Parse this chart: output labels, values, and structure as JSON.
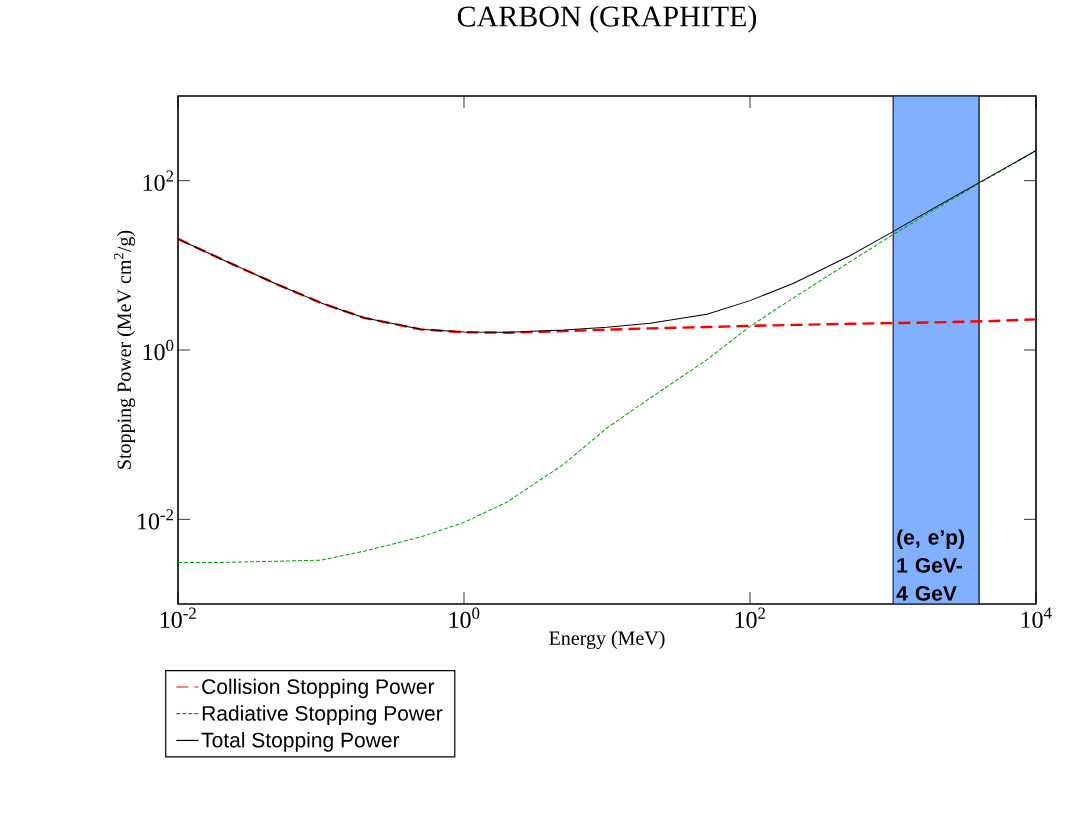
{
  "chart_data": {
    "type": "line",
    "title": "CARBON (GRAPHITE)",
    "xlabel": "Energy (MeV)",
    "ylabel": "Stopping Power (MeV cm$^{2}$/g)",
    "log": "xy",
    "legend": "bottom left",
    "marker": "none",
    "xlim": [
      0.01,
      10000
    ],
    "ylim": [
      0.001,
      1000
    ],
    "xticks": [
      {
        "value": 0.01,
        "label": "10$^{-2}$"
      },
      {
        "value": 1,
        "label": "10$^{0}$"
      },
      {
        "value": 100,
        "label": "10$^{2}$"
      },
      {
        "value": 10000,
        "label": "10$^{4}$"
      }
    ],
    "yticks": [
      {
        "value": 0.01,
        "label": "10$^{-2}$"
      },
      {
        "value": 1,
        "label": "10$^{0}$"
      },
      {
        "value": 100,
        "label": "10$^{2}$"
      }
    ],
    "x": [
      0.01,
      0.02,
      0.05,
      0.1,
      0.2,
      0.5,
      1,
      2,
      5,
      10,
      20,
      50,
      100,
      200,
      500,
      1000,
      2000,
      5000,
      10000
    ],
    "series": [
      {
        "name": "Collision Stopping Power",
        "color": "#ff0000",
        "line_style": "dashed",
        "values": [
          20.5,
          11.9,
          5.9,
          3.6,
          2.4,
          1.75,
          1.62,
          1.6,
          1.67,
          1.74,
          1.8,
          1.87,
          1.93,
          1.98,
          2.04,
          2.08,
          2.12,
          2.2,
          2.3
        ]
      },
      {
        "name": "Radiative Stopping Power",
        "color": "#00a000",
        "line_style": "dotted",
        "values": [
          0.0031,
          0.0031,
          0.0032,
          0.0033,
          0.0042,
          0.0062,
          0.0092,
          0.016,
          0.045,
          0.12,
          0.27,
          0.77,
          1.9,
          4.1,
          11,
          23,
          47,
          115,
          225
        ]
      },
      {
        "name": "Total Stopping Power",
        "color": "#000000",
        "line_style": "solid",
        "values": [
          20.5,
          11.9,
          5.9,
          3.6,
          2.4,
          1.76,
          1.63,
          1.62,
          1.72,
          1.86,
          2.07,
          2.64,
          3.83,
          6.1,
          13,
          25,
          49,
          117,
          227
        ]
      }
    ],
    "bands": [
      {
        "axis": "x",
        "from": 1000,
        "to": 4000,
        "label": "(e, e’p) 1 GeV- 4 GeV",
        "color": "#80b0ff"
      }
    ]
  }
}
